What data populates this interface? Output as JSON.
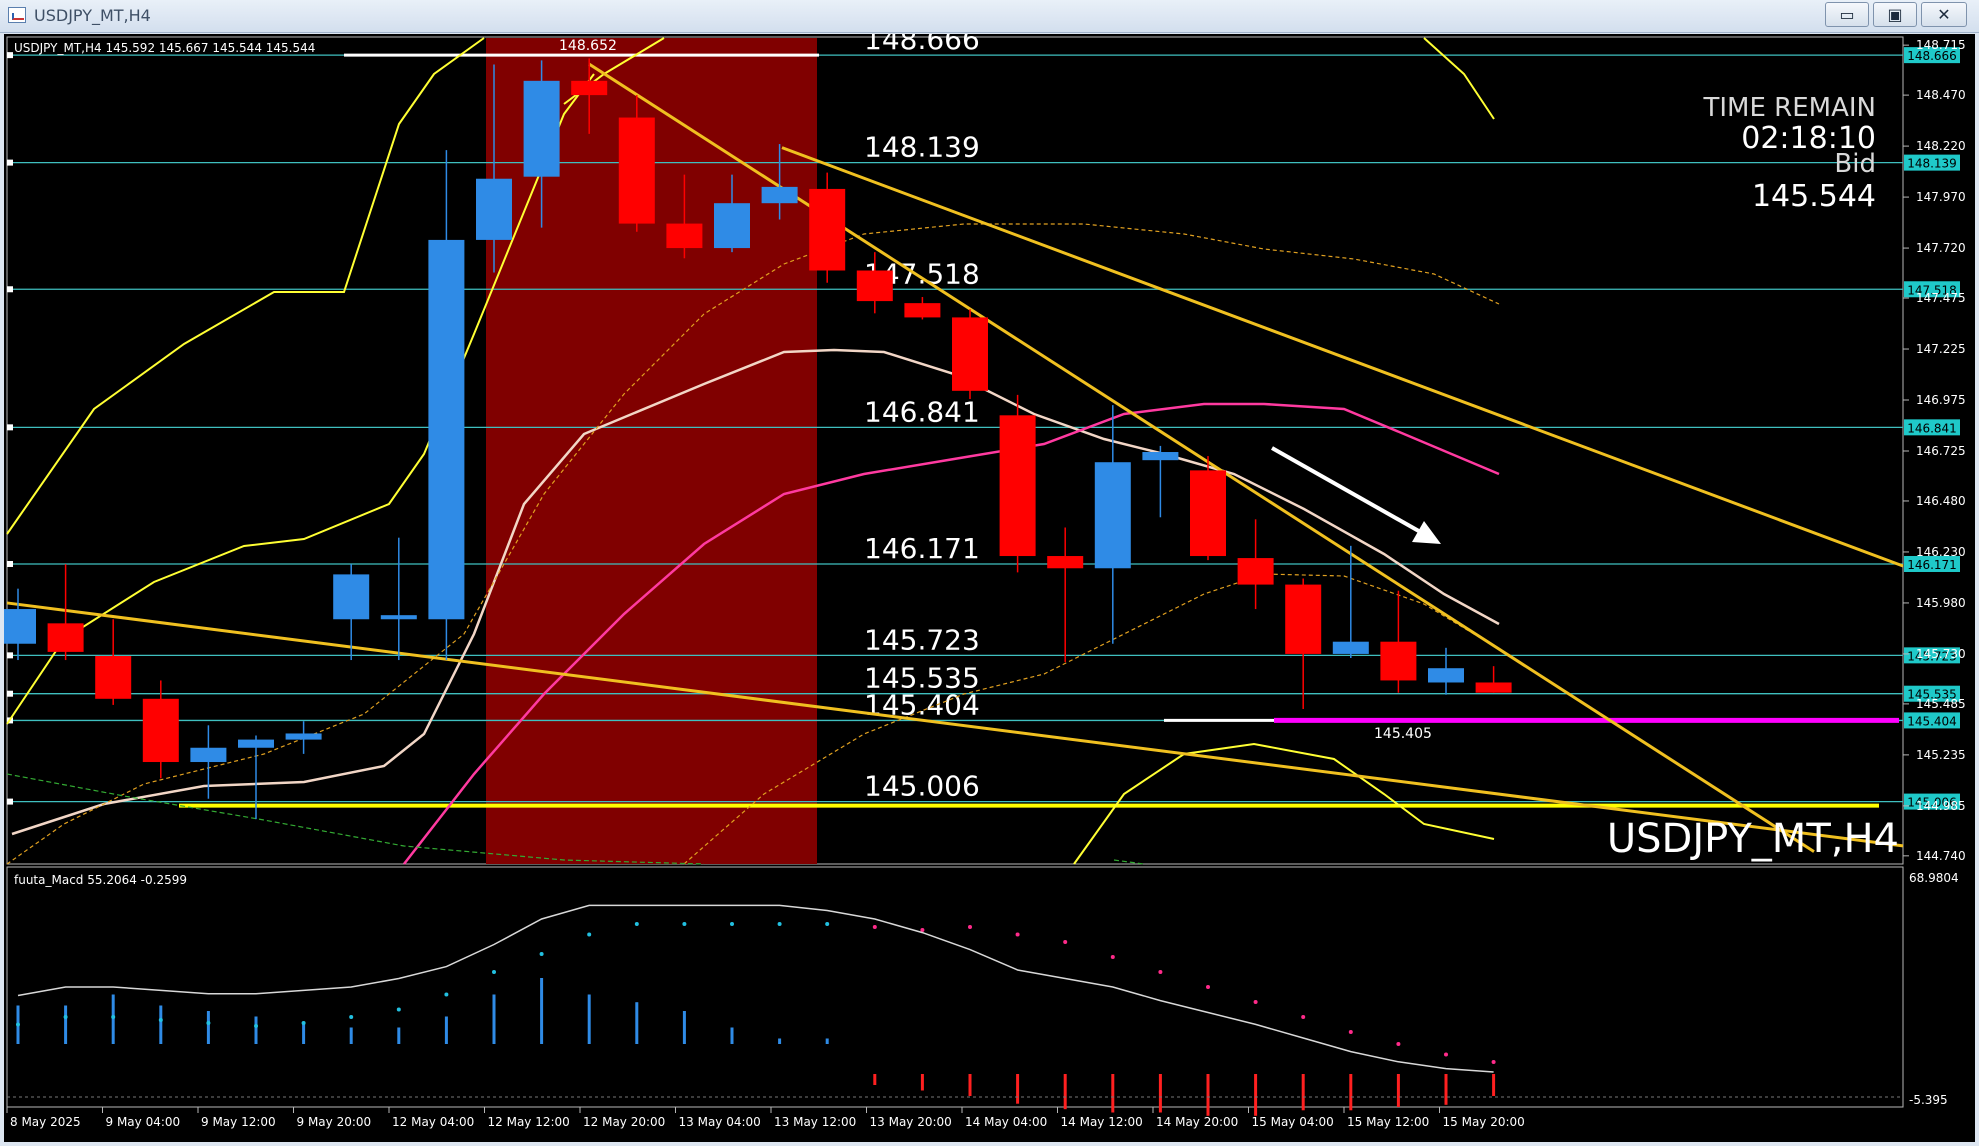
{
  "window": {
    "title": "USDJPY_MT,H4",
    "minimize_label": "▭",
    "maximize_label": "▣",
    "close_label": "✕"
  },
  "chart_data": {
    "type": "candlestick",
    "symbol_header": "USDJPY_MT,H4  145.592 145.667 145.544 145.544",
    "watermark": "USDJPY_MT,H4",
    "ylim": [
      144.7,
      148.75
    ],
    "time_remain": {
      "label": "TIME REMAIN",
      "value": "02:18:10",
      "bid_label": "Bid",
      "bid_value": "145.544"
    },
    "up_color": "#2f8be6",
    "down_color": "#ff0000",
    "x_ticks": [
      "8 May 2025",
      "9 May 04:00",
      "9 May 12:00",
      "9 May 20:00",
      "12 May 04:00",
      "12 May 12:00",
      "12 May 20:00",
      "13 May 04:00",
      "13 May 12:00",
      "13 May 20:00",
      "14 May 04:00",
      "14 May 12:00",
      "14 May 20:00",
      "15 May 04:00",
      "15 May 12:00",
      "15 May 20:00"
    ],
    "y_ticks": [
      "148.715",
      "148.470",
      "148.220",
      "147.970",
      "147.720",
      "147.475",
      "147.225",
      "146.975",
      "146.725",
      "146.480",
      "146.230",
      "145.980",
      "145.730",
      "145.485",
      "145.235",
      "144.985",
      "144.740"
    ],
    "candles": [
      {
        "o": 145.78,
        "h": 146.05,
        "l": 145.7,
        "c": 145.95
      },
      {
        "o": 145.88,
        "h": 146.17,
        "l": 145.7,
        "c": 145.74
      },
      {
        "o": 145.72,
        "h": 145.9,
        "l": 145.48,
        "c": 145.51
      },
      {
        "o": 145.51,
        "h": 145.6,
        "l": 145.12,
        "c": 145.2
      },
      {
        "o": 145.2,
        "h": 145.38,
        "l": 145.02,
        "c": 145.27
      },
      {
        "o": 145.27,
        "h": 145.33,
        "l": 144.92,
        "c": 145.31
      },
      {
        "o": 145.31,
        "h": 145.4,
        "l": 145.24,
        "c": 145.34
      },
      {
        "o": 145.9,
        "h": 146.17,
        "l": 145.7,
        "c": 146.12
      },
      {
        "o": 145.9,
        "h": 146.3,
        "l": 145.7,
        "c": 145.92
      },
      {
        "o": 145.9,
        "h": 148.2,
        "l": 145.7,
        "c": 147.76
      },
      {
        "o": 147.76,
        "h": 148.62,
        "l": 147.6,
        "c": 148.06
      },
      {
        "o": 148.07,
        "h": 148.64,
        "l": 147.82,
        "c": 148.54
      },
      {
        "o": 148.54,
        "h": 148.65,
        "l": 148.28,
        "c": 148.47
      },
      {
        "o": 148.36,
        "h": 148.47,
        "l": 147.8,
        "c": 147.84
      },
      {
        "o": 147.84,
        "h": 148.08,
        "l": 147.67,
        "c": 147.72
      },
      {
        "o": 147.72,
        "h": 148.08,
        "l": 147.7,
        "c": 147.94
      },
      {
        "o": 147.94,
        "h": 148.23,
        "l": 147.86,
        "c": 148.02
      },
      {
        "o": 148.01,
        "h": 148.09,
        "l": 147.55,
        "c": 147.61
      },
      {
        "o": 147.61,
        "h": 147.7,
        "l": 147.4,
        "c": 147.46
      },
      {
        "o": 147.45,
        "h": 147.48,
        "l": 147.37,
        "c": 147.38
      },
      {
        "o": 147.38,
        "h": 147.42,
        "l": 146.98,
        "c": 147.02
      },
      {
        "o": 146.9,
        "h": 147.0,
        "l": 146.13,
        "c": 146.21
      },
      {
        "o": 146.21,
        "h": 146.35,
        "l": 145.69,
        "c": 146.15
      },
      {
        "o": 146.15,
        "h": 146.95,
        "l": 145.78,
        "c": 146.67
      },
      {
        "o": 146.68,
        "h": 146.75,
        "l": 146.4,
        "c": 146.72
      },
      {
        "o": 146.63,
        "h": 146.7,
        "l": 146.19,
        "c": 146.21
      },
      {
        "o": 146.2,
        "h": 146.39,
        "l": 145.95,
        "c": 146.07
      },
      {
        "o": 146.07,
        "h": 146.1,
        "l": 145.46,
        "c": 145.73
      },
      {
        "o": 145.73,
        "h": 146.26,
        "l": 145.71,
        "c": 145.79
      },
      {
        "o": 145.79,
        "h": 146.04,
        "l": 145.54,
        "c": 145.6
      },
      {
        "o": 145.59,
        "h": 145.76,
        "l": 145.53,
        "c": 145.66
      },
      {
        "o": 145.59,
        "h": 145.67,
        "l": 145.54,
        "c": 145.54
      }
    ],
    "horizontal_levels": [
      {
        "price": 148.666,
        "label": "148.666",
        "tag": "148.666"
      },
      {
        "price": 148.139,
        "label": "148.139",
        "tag": "148.139"
      },
      {
        "price": 147.518,
        "label": "147.518",
        "tag": "147.518"
      },
      {
        "price": 146.841,
        "label": "146.841",
        "tag": "146.841"
      },
      {
        "price": 146.171,
        "label": "146.171",
        "tag": "146.171"
      },
      {
        "price": 145.723,
        "label": "145.723",
        "tag": "145.723"
      },
      {
        "price": 145.535,
        "label": "145.535",
        "tag": "145.535"
      },
      {
        "price": 145.404,
        "label": "145.404",
        "tag": "145.404"
      },
      {
        "price": 145.006,
        "label": "145.006",
        "tag": "145.006"
      }
    ],
    "annotations": [
      {
        "text": "148.652",
        "price": 148.652
      },
      {
        "text": "145.405",
        "price": 145.405
      }
    ],
    "macd": {
      "label": "fuuta_Macd 55.2064 -0.2599",
      "ymax_label": "68.9804",
      "ymin_label": "-5.395",
      "histogram": [
        0.35,
        0.35,
        0.45,
        0.35,
        0.3,
        0.25,
        0.2,
        0.15,
        0.15,
        0.25,
        0.45,
        0.6,
        0.45,
        0.38,
        0.3,
        0.15,
        0.05,
        0.05,
        -0.1,
        -0.15,
        -0.2,
        -0.27,
        -0.32,
        -0.35,
        -0.35,
        -0.38,
        -0.38,
        -0.33,
        -0.33,
        -0.3,
        -0.28,
        -0.2
      ],
      "signal_dots": [
        0.25,
        0.3,
        0.3,
        0.28,
        0.26,
        0.24,
        0.26,
        0.3,
        0.35,
        0.45,
        0.6,
        0.72,
        0.85,
        0.92,
        0.92,
        0.92,
        0.92,
        0.92,
        0.9,
        0.88,
        0.9,
        0.85,
        0.8,
        0.7,
        0.6,
        0.5,
        0.4,
        0.3,
        0.2,
        0.12,
        0.05,
        0.0
      ],
      "line": [
        0.45,
        0.5,
        0.5,
        0.48,
        0.46,
        0.46,
        0.48,
        0.5,
        0.55,
        0.62,
        0.75,
        0.9,
        0.98,
        0.98,
        0.98,
        0.98,
        0.98,
        0.95,
        0.9,
        0.82,
        0.72,
        0.6,
        0.55,
        0.5,
        0.42,
        0.35,
        0.28,
        0.2,
        0.12,
        0.06,
        0.02,
        0.0
      ]
    }
  }
}
